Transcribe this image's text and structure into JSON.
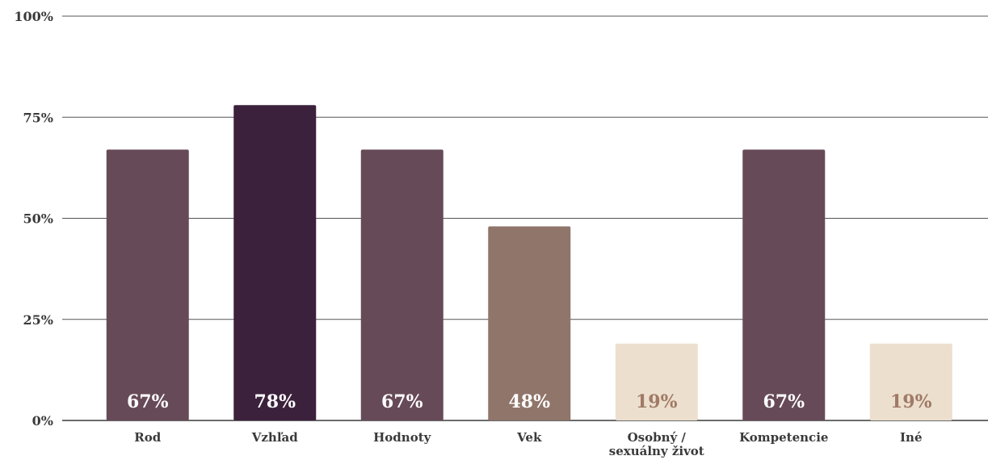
{
  "chart_data": {
    "type": "bar",
    "categories": [
      "Rod",
      "Vzhľad",
      "Hodnoty",
      "Vek",
      "Osobný / sexuálny život",
      "Kompetencie",
      "Iné"
    ],
    "category_lines": [
      [
        "Rod"
      ],
      [
        "Vzhľad"
      ],
      [
        "Hodnoty"
      ],
      [
        "Vek"
      ],
      [
        "Osobný /",
        "sexuálny život"
      ],
      [
        "Kompetencie"
      ],
      [
        "Iné"
      ]
    ],
    "values": [
      67,
      78,
      67,
      48,
      19,
      67,
      19
    ],
    "value_labels": [
      "67%",
      "78%",
      "67%",
      "48%",
      "19%",
      "67%",
      "19%"
    ],
    "bar_colors": [
      "#674a58",
      "#3b213b",
      "#674a58",
      "#90756a",
      "#ecdfce",
      "#674a58",
      "#ecdfce"
    ],
    "label_colors": [
      "#ffffff",
      "#ffffff",
      "#ffffff",
      "#ffffff",
      "#a07a66",
      "#ffffff",
      "#a07a66"
    ],
    "y_ticks": [
      0,
      25,
      50,
      75,
      100
    ],
    "y_tick_labels": [
      "0%",
      "25%",
      "50%",
      "75%",
      "100%"
    ],
    "ylim": [
      0,
      100
    ],
    "grid": true,
    "title": "",
    "xlabel": "",
    "ylabel": ""
  }
}
